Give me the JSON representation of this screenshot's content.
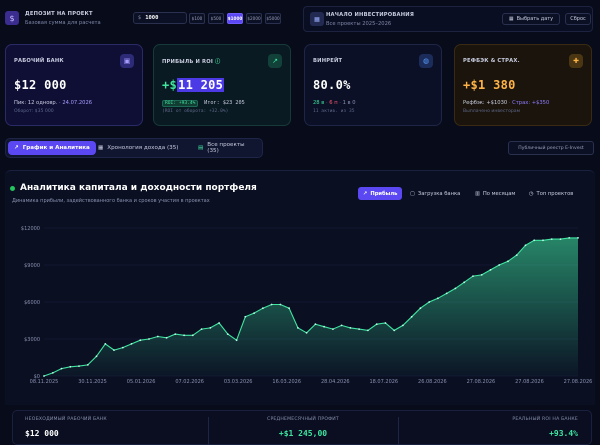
{
  "topbar": {
    "deposit_title": "ДЕПОЗИТ НА ПРОЕКТ",
    "deposit_sub": "Базовая сумма для расчета",
    "currency": "$",
    "deposit_value": "1000",
    "presets": [
      "$100",
      "$500",
      "$1000",
      "$2000",
      "$5000"
    ],
    "active_preset": "$1000",
    "start_title": "НАЧАЛО ИНВЕСТИРОВАНИЯ",
    "start_sub": "Все проекты 2025–2026",
    "pick_date": "Выбрать дату",
    "reset": "Сброс"
  },
  "cards": {
    "bank": {
      "title": "РАБОЧИЙ БАНК",
      "value": "$12 000",
      "peak_label": "Пик: 12 одновр.",
      "peak_date": "· 24.07.2026",
      "turnover": "Оборот: $35 000"
    },
    "profit": {
      "title": "ПРИБЫЛЬ И ROI",
      "plus": "+$",
      "value": "11 205",
      "roi_badge": "ROI: +93.4%",
      "total": "Итог: $23 205",
      "roi_turnover": "(ROI от оборота: +32.0%)"
    },
    "winrate": {
      "title": "ВИНРЕЙТ",
      "value": "80.0%",
      "wins": "28 в",
      "losses": "6 п",
      "zero": "1 в 0",
      "active": "11 актив. из 35"
    },
    "referral": {
      "title": "РЕФБЭК & СТРАХ.",
      "value": "+$1 380",
      "refback": "Рефбэк: +$1030",
      "insurance": "Страх: +$350",
      "paid": "Выплачено инвесторам"
    }
  },
  "tabs": [
    "График и Аналитика",
    "Хронология дохода (35)",
    "Все проекты (35)"
  ],
  "registry": "Публичный реестр E-Invest",
  "chart_tabs": [
    "Прибыль",
    "Загрузка банка",
    "По месяцам",
    "Топ проектов"
  ],
  "chart_data": {
    "type": "area",
    "title": "Аналитика капитала и доходности портфеля",
    "subtitle": "Динамика прибыли, задействованного банка и сроков участия в проектах",
    "ylim": [
      0,
      12000
    ],
    "yticks": [
      "$12000",
      "$9000",
      "$6000",
      "$3000",
      "$0"
    ],
    "xticks": [
      "08.11.2025",
      "30.11.2025",
      "05.01.2026",
      "07.02.2026",
      "03.03.2026",
      "16.03.2026",
      "28.04.2026",
      "18.07.2026",
      "26.08.2026",
      "27.08.2026",
      "27.08.2026",
      "27.08.2026"
    ],
    "series": [
      {
        "values": [
          0,
          250,
          600,
          750,
          800,
          900,
          1600,
          2600,
          2100,
          2300,
          2600,
          2900,
          3000,
          3200,
          3100,
          3400,
          3300,
          3300,
          3800,
          3900,
          4300,
          3400,
          2900,
          4800,
          5100,
          5500,
          5800,
          5800,
          5500,
          3900,
          3500,
          4200,
          4000,
          3800,
          4100,
          3900,
          3800,
          3700,
          4200,
          4300,
          3700,
          4100,
          4800,
          5500,
          6000,
          6300,
          6700,
          7100,
          7600,
          8100,
          8200,
          8600,
          9000,
          9300,
          9800,
          10600,
          11000,
          11000,
          11100,
          11100,
          11200,
          11200
        ]
      }
    ]
  },
  "footer": {
    "bank_label": "НЕОБХОДИМЫЙ РАБОЧИЙ БАНК",
    "bank_value": "$12 000",
    "monthly_label": "СРЕДНЕМЕСЯЧНЫЙ ПРОФИТ",
    "monthly_value": "+$1 245,00",
    "roi_label": "РЕАЛЬНЫЙ ROI НА БАНКЕ",
    "roi_value": "+93.4%"
  },
  "colors": {
    "accent": "#5b48f2",
    "profit_line": "#3ee6a0",
    "background": "#070b1a"
  }
}
